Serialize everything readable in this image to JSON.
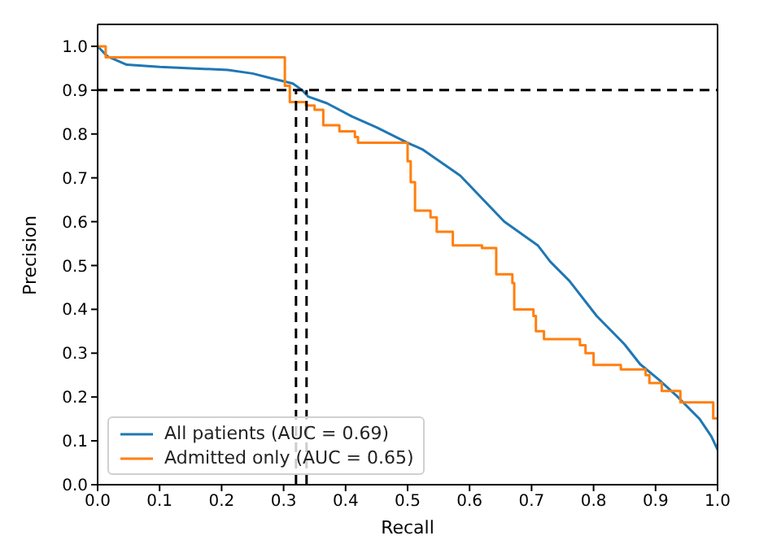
{
  "chart_data": {
    "type": "step",
    "xlabel": "Recall",
    "ylabel": "Precision",
    "xlim": [
      0,
      1
    ],
    "ylim": [
      0,
      1.05
    ],
    "xticks": [
      {
        "value": 0,
        "label": "0.0"
      },
      0.1,
      0.2,
      0.3,
      0.4,
      0.5,
      0.6,
      0.7,
      0.8,
      0.9,
      {
        "value": 1,
        "label": "1.0"
      }
    ],
    "yticks": [
      {
        "value": 0,
        "label": "0.0"
      },
      0.1,
      0.2,
      0.3,
      0.4,
      0.5,
      0.6,
      0.7,
      0.8,
      0.9,
      {
        "value": 1,
        "label": "1.0"
      }
    ],
    "legend": "bottom left",
    "marker": "none",
    "line_style": "solid",
    "series": [
      {
        "name": "All patients (AUC = 0.69)",
        "color": "#1f77b4",
        "type": "line",
        "x": [
          0,
          0.016,
          0.047,
          0.1,
          0.15,
          0.21,
          0.25,
          0.28,
          0.315,
          0.33,
          0.34,
          0.37,
          0.41,
          0.45,
          0.5,
          0.525,
          0.585,
          0.656,
          0.71,
          0.73,
          0.761,
          0.805,
          0.85,
          0.875,
          0.905,
          0.936,
          0.971,
          0.99,
          1.0
        ],
        "values": [
          1.0,
          0.977,
          0.958,
          0.953,
          0.95,
          0.946,
          0.938,
          0.927,
          0.915,
          0.9,
          0.885,
          0.87,
          0.84,
          0.815,
          0.78,
          0.764,
          0.705,
          0.6,
          0.546,
          0.509,
          0.465,
          0.385,
          0.32,
          0.275,
          0.24,
          0.2,
          0.15,
          0.11,
          0.08
        ]
      },
      {
        "name": "Admitted only (AUC = 0.65)",
        "color": "#ff7f0e",
        "x": [
          0,
          0.013,
          0.302,
          0.31,
          0.336,
          0.35,
          0.364,
          0.39,
          0.415,
          0.42,
          0.5,
          0.505,
          0.512,
          0.537,
          0.547,
          0.573,
          0.62,
          0.643,
          0.669,
          0.672,
          0.703,
          0.707,
          0.72,
          0.778,
          0.787,
          0.8,
          0.844,
          0.884,
          0.89,
          0.91,
          0.94,
          0.993,
          1.0
        ],
        "values": [
          1.0,
          0.975,
          0.91,
          0.873,
          0.865,
          0.855,
          0.82,
          0.806,
          0.793,
          0.78,
          0.738,
          0.69,
          0.625,
          0.61,
          0.577,
          0.546,
          0.54,
          0.48,
          0.46,
          0.4,
          0.385,
          0.35,
          0.332,
          0.318,
          0.3,
          0.273,
          0.263,
          0.25,
          0.232,
          0.214,
          0.188,
          0.151,
          0.151
        ]
      }
    ],
    "ref_lines": [
      {
        "axis": "y",
        "value": 0.9,
        "color": "#000000",
        "line_style": "dashed"
      },
      {
        "axis": "x",
        "value": 0.32,
        "color": "#000000",
        "line_style": "dashed"
      },
      {
        "axis": "x",
        "value": 0.337,
        "color": "#000000",
        "line_style": "dashed"
      }
    ]
  }
}
